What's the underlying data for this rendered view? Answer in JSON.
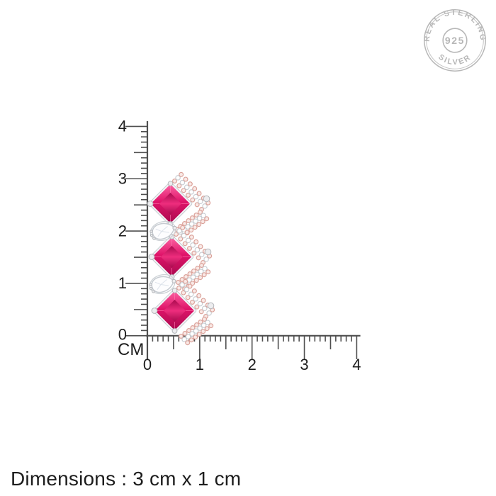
{
  "stamp": {
    "top_text": "REAL STERLING",
    "center_text": "925",
    "bottom_text": "SILVER"
  },
  "ruler": {
    "unit_label": "CM",
    "vertical_labels": [
      "4",
      "3",
      "2",
      "1",
      "0"
    ],
    "horizontal_labels": [
      "0",
      "1",
      "2",
      "3",
      "4"
    ]
  },
  "footer": {
    "dimensions_text": "Dimensions : 3 cm x 1 cm"
  },
  "product": {
    "type": "pink-stone-drop-earring"
  },
  "theme": {
    "ruby_light": "#fb63a2",
    "ruby": "#e0146a",
    "ruby_mid": "#ee2d7d",
    "ruby_dark": "#a90a4e",
    "rose_gold": "#dba29a",
    "rose_fill": "#f9e9e6",
    "silver": "#c6cbd0",
    "silver_light": "#f3f4f6",
    "white_stone": "#fdfdfe",
    "stamp_gray": "#b7b7b7",
    "ruler_line": "#4f4f4f",
    "text_dark": "#1d1d1d"
  }
}
